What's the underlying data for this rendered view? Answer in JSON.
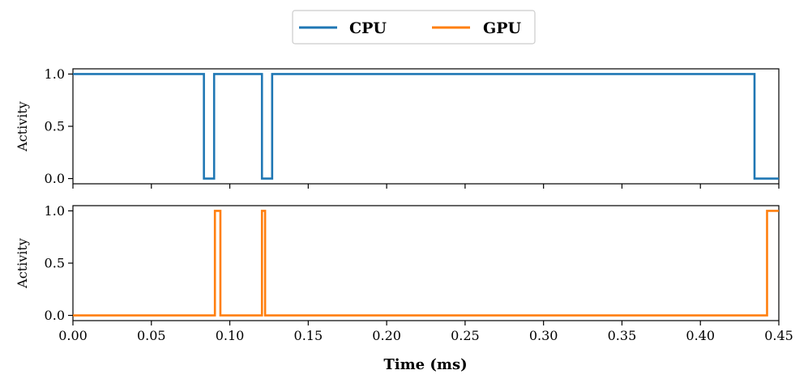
{
  "chart_data": {
    "type": "line",
    "step": true,
    "legend": {
      "placement": "top-center",
      "entries": [
        {
          "name": "CPU",
          "color": "#1f77b4"
        },
        {
          "name": "GPU",
          "color": "#ff7f0e"
        }
      ]
    },
    "xlabel": "Time (ms)",
    "xlim": [
      0,
      0.45
    ],
    "xticks": [
      "0.00",
      "0.05",
      "0.10",
      "0.15",
      "0.20",
      "0.25",
      "0.30",
      "0.35",
      "0.40",
      "0.45"
    ],
    "subplots": [
      {
        "series": "CPU",
        "color": "#1f77b4",
        "ylabel": "Activity",
        "ylim": [
          -0.05,
          1.05
        ],
        "yticks": [
          "0.0",
          "0.5",
          "1.0"
        ],
        "x": [
          0,
          0.0835,
          0.0835,
          0.09,
          0.09,
          0.1205,
          0.1205,
          0.127,
          0.127,
          0.4345,
          0.4345,
          0.45
        ],
        "y": [
          1,
          1,
          0,
          0,
          1,
          1,
          0,
          0,
          1,
          1,
          0,
          0
        ]
      },
      {
        "series": "GPU",
        "color": "#ff7f0e",
        "ylabel": "Activity",
        "ylim": [
          -0.05,
          1.05
        ],
        "yticks": [
          "0.0",
          "0.5",
          "1.0"
        ],
        "x": [
          0,
          0.0905,
          0.0905,
          0.094,
          0.094,
          0.1205,
          0.1205,
          0.1225,
          0.1225,
          0.4425,
          0.4425,
          0.45
        ],
        "y": [
          0,
          0,
          1,
          1,
          0,
          0,
          1,
          1,
          0,
          0,
          1,
          1
        ]
      }
    ]
  }
}
